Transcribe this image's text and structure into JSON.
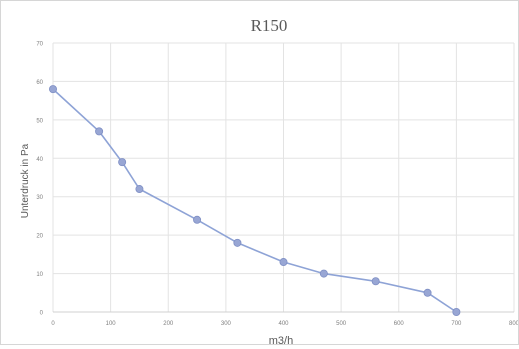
{
  "chart_data": {
    "type": "line",
    "title": "R150",
    "xlabel": "m3/h",
    "ylabel": "Unterdruck in Pa",
    "xlim": [
      0,
      800
    ],
    "ylim": [
      0,
      70
    ],
    "x_ticks": [
      0,
      100,
      200,
      300,
      400,
      500,
      600,
      700,
      800
    ],
    "y_ticks": [
      0,
      10,
      20,
      30,
      40,
      50,
      60,
      70
    ],
    "x_tick_labels": [
      "0",
      "100",
      "200",
      "300",
      "400",
      "500",
      "600",
      "700",
      "800"
    ],
    "y_tick_labels": [
      "0",
      "10",
      "20",
      "30",
      "40",
      "50",
      "60",
      "70"
    ],
    "grid": true,
    "legend": "none",
    "series": [
      {
        "color": "#8ea3d6",
        "marker_color": "#98a6d4",
        "x": [
          0,
          80,
          120,
          150,
          250,
          320,
          400,
          470,
          560,
          650,
          700
        ],
        "y": [
          58,
          47,
          39,
          32,
          24,
          18,
          13,
          10,
          8,
          5,
          0
        ]
      }
    ]
  }
}
